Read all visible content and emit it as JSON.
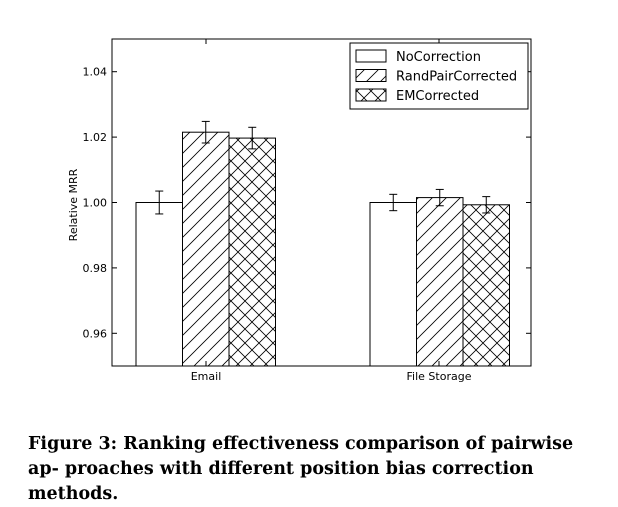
{
  "chart_data": {
    "type": "bar",
    "categories": [
      "Email",
      "File Storage"
    ],
    "series": [
      {
        "name": "NoCorrection",
        "pattern": "none",
        "values": [
          1.0,
          1.0
        ],
        "errors": [
          0.0035,
          0.0025
        ]
      },
      {
        "name": "RandPairCorrected",
        "pattern": "diagonal",
        "values": [
          1.0215,
          1.0015
        ],
        "errors": [
          0.0033,
          0.0025
        ]
      },
      {
        "name": "EMCorrected",
        "pattern": "crosshatch",
        "values": [
          1.0197,
          0.9993
        ],
        "errors": [
          0.0033,
          0.0025
        ]
      }
    ],
    "ylabel": "Relative MRR",
    "xlabel": "",
    "ylim": [
      0.95,
      1.05
    ],
    "yticks": [
      0.96,
      0.98,
      1.0,
      1.02,
      1.04
    ],
    "ytick_labels": [
      "0.96",
      "0.98",
      "1.00",
      "1.02",
      "1.04"
    ],
    "legend_position": "top-right",
    "grid": false
  },
  "caption": "Figure 3: Ranking effectiveness comparison of pairwise ap- proaches with different position bias correction methods."
}
